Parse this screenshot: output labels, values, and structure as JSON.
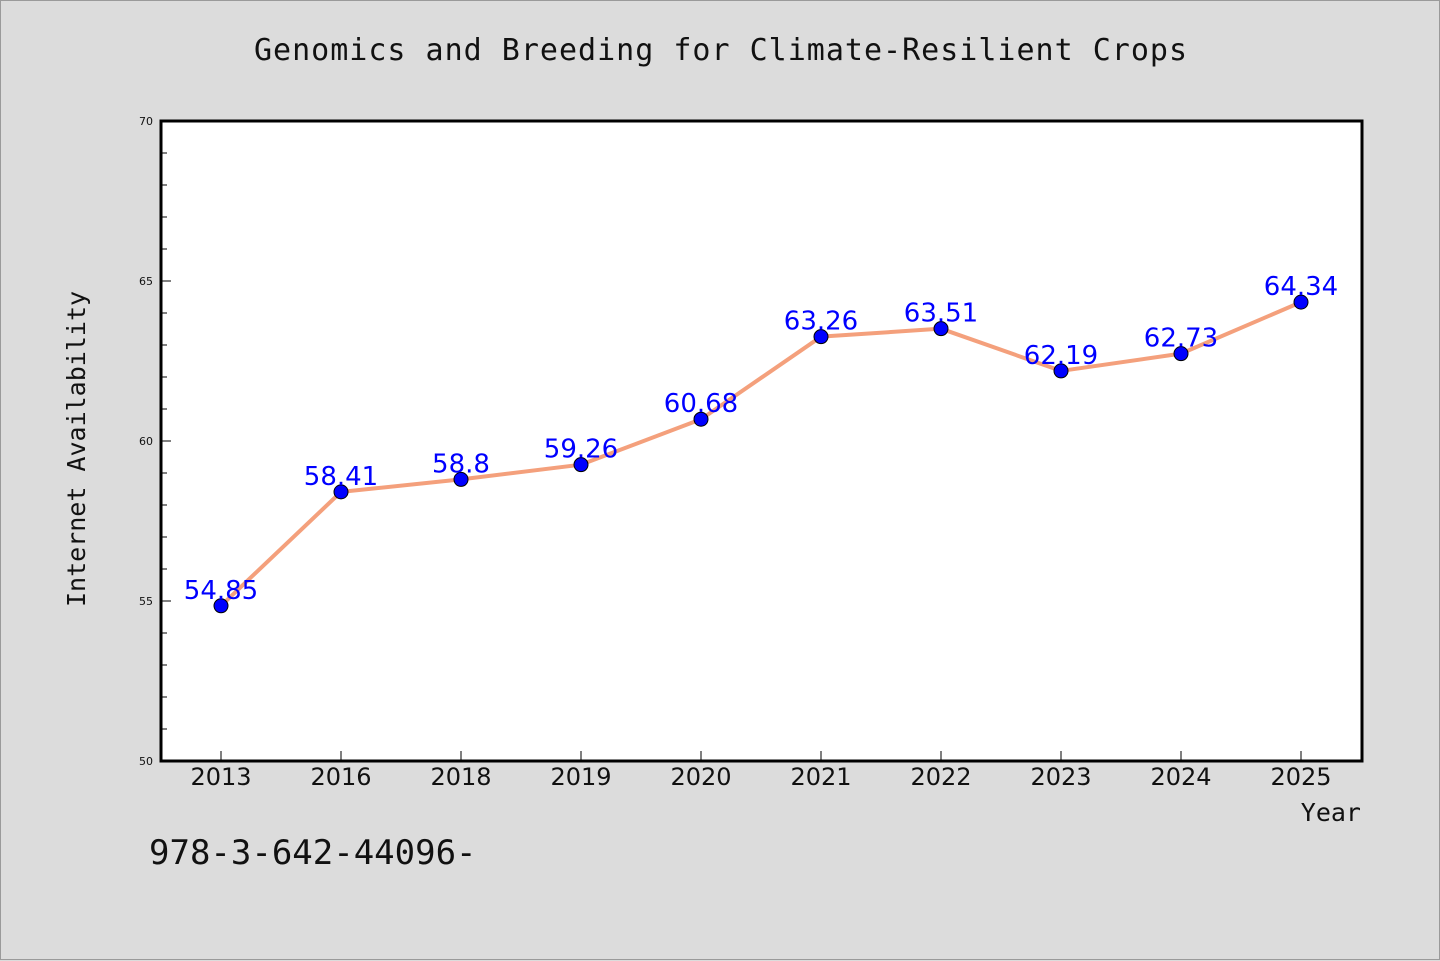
{
  "chart_data": {
    "type": "line",
    "title": "Genomics and Breeding for Climate-Resilient Crops",
    "xlabel": "Year",
    "ylabel": "Internet Availability",
    "categories": [
      "2013",
      "2016",
      "2018",
      "2019",
      "2020",
      "2021",
      "2022",
      "2023",
      "2024",
      "2025"
    ],
    "values": [
      54.85,
      58.41,
      58.8,
      59.26,
      60.68,
      63.26,
      63.51,
      62.19,
      62.73,
      64.34
    ],
    "data_labels": [
      "54.85",
      "58.41",
      "58.8",
      "59.26",
      "60.68",
      "63.26",
      "63.51",
      "62.19",
      "62.73",
      "64.34"
    ],
    "ylim": [
      50,
      70
    ],
    "yticks": [
      "50",
      "55",
      "60",
      "65",
      "70"
    ],
    "line_color": "#f4a07c",
    "marker_color": "#0000ff",
    "label_color": "#0000ff",
    "grid": false,
    "legend": "none"
  },
  "footer": {
    "code": "978-3-642-44096-"
  }
}
